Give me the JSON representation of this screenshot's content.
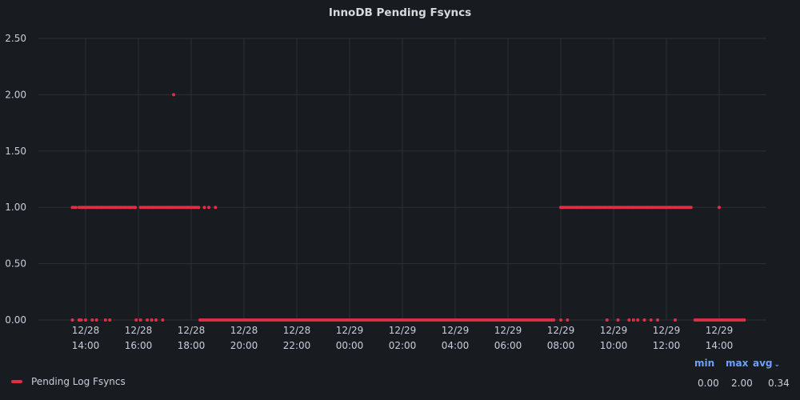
{
  "panel": {
    "title": "InnoDB Pending Fsyncs"
  },
  "chart_data": {
    "type": "scatter",
    "title": "InnoDB Pending Fsyncs",
    "ylim": [
      0,
      2.5
    ],
    "y_ticks": [
      "0.00",
      "0.50",
      "1.00",
      "1.50",
      "2.00",
      "2.50"
    ],
    "y_tick_values": [
      0,
      0.5,
      1,
      1.5,
      2,
      2.5
    ],
    "x_range": [
      "2022-12-28 13:00",
      "2022-12-29 15:00"
    ],
    "x_ticks": [
      {
        "date": "12/28",
        "time": "14:00"
      },
      {
        "date": "12/28",
        "time": "16:00"
      },
      {
        "date": "12/28",
        "time": "18:00"
      },
      {
        "date": "12/28",
        "time": "20:00"
      },
      {
        "date": "12/28",
        "time": "22:00"
      },
      {
        "date": "12/29",
        "time": "00:00"
      },
      {
        "date": "12/29",
        "time": "02:00"
      },
      {
        "date": "12/29",
        "time": "04:00"
      },
      {
        "date": "12/29",
        "time": "06:00"
      },
      {
        "date": "12/29",
        "time": "08:00"
      },
      {
        "date": "12/29",
        "time": "10:00"
      },
      {
        "date": "12/29",
        "time": "12:00"
      },
      {
        "date": "12/29",
        "time": "14:00"
      }
    ],
    "grid": true,
    "legend_position": "bottom-left",
    "series": [
      {
        "name": "Pending Log Fsyncs",
        "color": "#e02f44",
        "segments": [
          {
            "from": "12/28 13:30",
            "to": "12/28 13:40",
            "value": 1
          },
          {
            "from": "12/28 13:45",
            "to": "12/28 15:55",
            "value": 1
          },
          {
            "from": "12/28 16:05",
            "to": "12/28 18:20",
            "value": 1
          },
          {
            "from": "12/28 18:20",
            "to": "12/29 07:45",
            "value": 0
          },
          {
            "from": "12/29 08:00",
            "to": "12/29 13:00",
            "value": 1
          },
          {
            "from": "12/29 13:05",
            "to": "12/29 15:00",
            "value": 0
          }
        ],
        "points": [
          {
            "x": "12/28 17:20",
            "y": 2
          },
          {
            "x": "12/28 18:30",
            "y": 1
          },
          {
            "x": "12/28 18:40",
            "y": 1
          },
          {
            "x": "12/28 18:55",
            "y": 1
          },
          {
            "x": "12/29 14:00",
            "y": 1
          },
          {
            "x": "12/28 13:30",
            "y": 0
          },
          {
            "x": "12/28 13:45",
            "y": 0
          },
          {
            "x": "12/28 13:50",
            "y": 0
          },
          {
            "x": "12/28 14:00",
            "y": 0
          },
          {
            "x": "12/28 14:15",
            "y": 0
          },
          {
            "x": "12/28 14:25",
            "y": 0
          },
          {
            "x": "12/28 14:45",
            "y": 0
          },
          {
            "x": "12/28 14:55",
            "y": 0
          },
          {
            "x": "12/28 15:55",
            "y": 0
          },
          {
            "x": "12/28 16:05",
            "y": 0
          },
          {
            "x": "12/28 16:20",
            "y": 0
          },
          {
            "x": "12/28 16:30",
            "y": 0
          },
          {
            "x": "12/28 16:40",
            "y": 0
          },
          {
            "x": "12/28 16:55",
            "y": 0
          },
          {
            "x": "12/29 08:00",
            "y": 0
          },
          {
            "x": "12/29 08:15",
            "y": 0
          },
          {
            "x": "12/29 09:45",
            "y": 0
          },
          {
            "x": "12/29 10:10",
            "y": 0
          },
          {
            "x": "12/29 10:35",
            "y": 0
          },
          {
            "x": "12/29 10:45",
            "y": 0
          },
          {
            "x": "12/29 10:55",
            "y": 0
          },
          {
            "x": "12/29 11:10",
            "y": 0
          },
          {
            "x": "12/29 11:25",
            "y": 0
          },
          {
            "x": "12/29 11:40",
            "y": 0
          },
          {
            "x": "12/29 12:20",
            "y": 0
          }
        ]
      }
    ]
  },
  "legend": {
    "series_name": "Pending Log Fsyncs",
    "headers": {
      "min": "min",
      "max": "max",
      "avg": "avg"
    },
    "values": {
      "min": "0.00",
      "max": "2.00",
      "avg": "0.34"
    }
  },
  "colors": {
    "series": "#e02f44",
    "background": "#181b1f",
    "grid": "#2c3036",
    "stat_header": "#6e9fff"
  }
}
